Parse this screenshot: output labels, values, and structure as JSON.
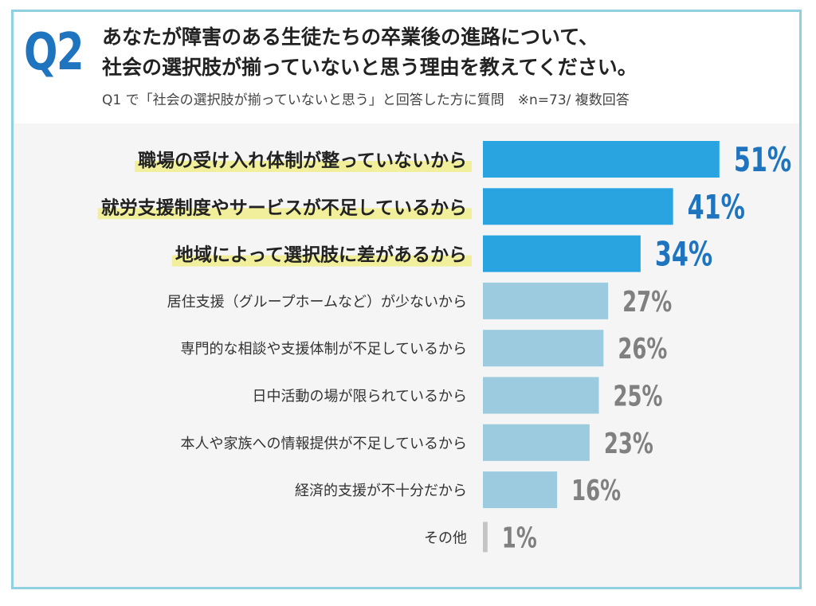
{
  "header": {
    "badge": "Q2",
    "title_line1": "あなたが障害のある生徒たちの卒業後の進路について、",
    "title_line2": "社会の選択肢が揃っていないと思う理由を教えてください。",
    "subtitle": "Q1 で「社会の選択肢が揃っていないと思う」と回答した方に質問　※n=73/ 複数回答"
  },
  "colors": {
    "highlight_bar": "#2aa3e1",
    "normal_bar": "#9ccbe0",
    "other_bar": "#c4c4c4",
    "highlight_value": "#1f74c0",
    "normal_value": "#808080",
    "marker": "#f1ef9b",
    "frame": "#8fd0e2"
  },
  "chart_data": {
    "type": "bar",
    "orientation": "horizontal",
    "categories": [
      "職場の受け入れ体制が整っていないから",
      "就労支援制度やサービスが不足しているから",
      "地域によって選択肢に差があるから",
      "居住支援（グループホームなど）が少ないから",
      "専門的な相談や支援体制が不足しているから",
      "日中活動の場が限られているから",
      "本人や家族への情報提供が不足しているから",
      "経済的支援が不十分だから",
      "その他"
    ],
    "values": [
      51,
      41,
      34,
      27,
      26,
      25,
      23,
      16,
      1
    ],
    "value_labels": [
      "51%",
      "41%",
      "34%",
      "27%",
      "26%",
      "25%",
      "23%",
      "16%",
      "1%"
    ],
    "highlighted": [
      true,
      true,
      true,
      false,
      false,
      false,
      false,
      false,
      false
    ],
    "unit": "%",
    "xlim": [
      0,
      60
    ]
  }
}
